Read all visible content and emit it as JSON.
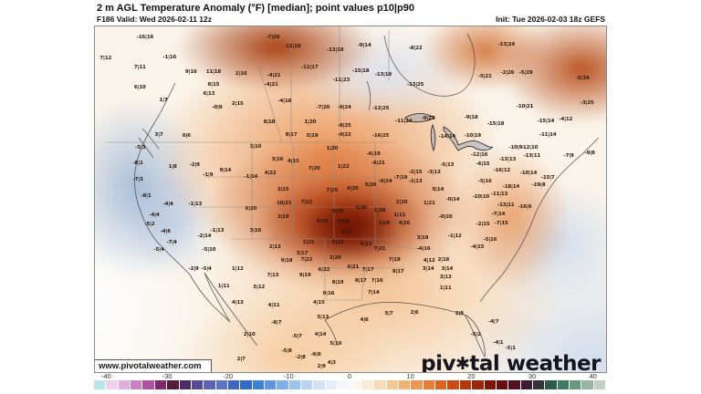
{
  "header": {
    "title": "2 m AGL Temperature Anomaly (°F) [median]; point values p10|p90",
    "valid": "F186 Valid: Wed 2026-02-11 12z",
    "init": "Init: Tue 2026-02-03 18z GEFS"
  },
  "map": {
    "watermark": "www.pivotalweather.com",
    "logo_text_1": "piv",
    "logo_gear": "✱",
    "logo_text_2": "tal weather",
    "points": [
      {
        "x": 9.8,
        "y": 3.2,
        "v": "-16|16"
      },
      {
        "x": 2.1,
        "y": 9.2,
        "v": "7|12"
      },
      {
        "x": 14.6,
        "y": 9.0,
        "v": "-1|16"
      },
      {
        "x": 8.8,
        "y": 11.9,
        "v": "7|11"
      },
      {
        "x": 18.8,
        "y": 13.2,
        "v": "9|16"
      },
      {
        "x": 23.2,
        "y": 13.2,
        "v": "11|18"
      },
      {
        "x": 8.8,
        "y": 17.7,
        "v": "6|10"
      },
      {
        "x": 23.2,
        "y": 16.9,
        "v": "8|15"
      },
      {
        "x": 22.3,
        "y": 19.5,
        "v": "6|13"
      },
      {
        "x": 13.4,
        "y": 21.4,
        "v": "1|7"
      },
      {
        "x": 23.9,
        "y": 23.5,
        "v": "-0|9"
      },
      {
        "x": 12.5,
        "y": 31.4,
        "v": "3|7"
      },
      {
        "x": 17.9,
        "y": 31.7,
        "v": "0|6"
      },
      {
        "x": 34.8,
        "y": 3.2,
        "v": "-7|29"
      },
      {
        "x": 38.6,
        "y": 5.8,
        "v": "-12|18"
      },
      {
        "x": 47.0,
        "y": 6.9,
        "v": "-13|19"
      },
      {
        "x": 52.7,
        "y": 5.5,
        "v": "-9|14"
      },
      {
        "x": 62.7,
        "y": 6.3,
        "v": "-8|22"
      },
      {
        "x": 28.6,
        "y": 13.7,
        "v": "2|16"
      },
      {
        "x": 35.0,
        "y": 14.2,
        "v": "-4|21"
      },
      {
        "x": 42.0,
        "y": 11.9,
        "v": "-12|17"
      },
      {
        "x": 52.0,
        "y": 12.9,
        "v": "-15|18"
      },
      {
        "x": 56.4,
        "y": 14.0,
        "v": "-13|18"
      },
      {
        "x": 62.7,
        "y": 16.9,
        "v": "-13|25"
      },
      {
        "x": 48.2,
        "y": 15.6,
        "v": "-11|23"
      },
      {
        "x": 34.5,
        "y": 16.9,
        "v": "-4|21"
      },
      {
        "x": 37.1,
        "y": 21.6,
        "v": "-4|18"
      },
      {
        "x": 44.6,
        "y": 23.5,
        "v": "-7|20"
      },
      {
        "x": 48.8,
        "y": 23.5,
        "v": "-9|24"
      },
      {
        "x": 55.9,
        "y": 23.7,
        "v": "-12|25"
      },
      {
        "x": 27.9,
        "y": 22.4,
        "v": "2|15"
      },
      {
        "x": 34.1,
        "y": 27.7,
        "v": "8|18"
      },
      {
        "x": 42.1,
        "y": 27.7,
        "v": "1|20"
      },
      {
        "x": 48.8,
        "y": 28.8,
        "v": "-8|25"
      },
      {
        "x": 60.4,
        "y": 27.4,
        "v": "-11|24"
      },
      {
        "x": 65.2,
        "y": 26.6,
        "v": "-9|23"
      },
      {
        "x": 38.4,
        "y": 31.4,
        "v": "8|17"
      },
      {
        "x": 42.5,
        "y": 31.7,
        "v": "5|19"
      },
      {
        "x": 48.8,
        "y": 31.4,
        "v": "-9|22"
      },
      {
        "x": 55.9,
        "y": 31.7,
        "v": "-16|25"
      },
      {
        "x": 68.9,
        "y": 31.9,
        "v": "-14|14"
      },
      {
        "x": 80.5,
        "y": 5.3,
        "v": "-13|24"
      },
      {
        "x": 76.3,
        "y": 14.5,
        "v": "-5|21"
      },
      {
        "x": 80.7,
        "y": 13.5,
        "v": "-2|26"
      },
      {
        "x": 84.3,
        "y": 13.5,
        "v": "-5|29"
      },
      {
        "x": 95.4,
        "y": 15.0,
        "v": "-5|34"
      },
      {
        "x": 84.1,
        "y": 23.2,
        "v": "-10|21"
      },
      {
        "x": 96.3,
        "y": 22.2,
        "v": "-3|25"
      },
      {
        "x": 78.4,
        "y": 28.2,
        "v": "-15|18"
      },
      {
        "x": 88.2,
        "y": 27.4,
        "v": "-15|14"
      },
      {
        "x": 92.1,
        "y": 26.9,
        "v": "-4|12"
      },
      {
        "x": 88.6,
        "y": 31.4,
        "v": "-11|14"
      },
      {
        "x": 73.9,
        "y": 31.7,
        "v": "-10|19"
      },
      {
        "x": 73.6,
        "y": 26.4,
        "v": "-9|18"
      },
      {
        "x": 8.9,
        "y": 35.1,
        "v": "-5|3"
      },
      {
        "x": 8.4,
        "y": 39.6,
        "v": "-8|1"
      },
      {
        "x": 15.2,
        "y": 40.6,
        "v": "1|8"
      },
      {
        "x": 19.5,
        "y": 40.1,
        "v": "-2|9"
      },
      {
        "x": 22.1,
        "y": 43.0,
        "v": "-1|9"
      },
      {
        "x": 25.5,
        "y": 41.7,
        "v": "9|14"
      },
      {
        "x": 8.4,
        "y": 44.3,
        "v": "-7|3"
      },
      {
        "x": 10.0,
        "y": 49.1,
        "v": "-8|1"
      },
      {
        "x": 14.3,
        "y": 51.5,
        "v": "-4|4"
      },
      {
        "x": 19.6,
        "y": 51.5,
        "v": "-1|13"
      },
      {
        "x": 11.6,
        "y": 54.6,
        "v": "-4|4"
      },
      {
        "x": 10.7,
        "y": 57.3,
        "v": "-5|2"
      },
      {
        "x": 13.8,
        "y": 59.4,
        "v": "-4|6"
      },
      {
        "x": 23.9,
        "y": 59.1,
        "v": "-1|13"
      },
      {
        "x": 21.4,
        "y": 60.7,
        "v": "-2|14"
      },
      {
        "x": 15.0,
        "y": 62.5,
        "v": "-7|4"
      },
      {
        "x": 22.3,
        "y": 64.6,
        "v": "-5|10"
      },
      {
        "x": 12.5,
        "y": 64.6,
        "v": "-5|4"
      },
      {
        "x": 31.4,
        "y": 34.8,
        "v": "3|10"
      },
      {
        "x": 35.7,
        "y": 38.5,
        "v": "3|16"
      },
      {
        "x": 38.8,
        "y": 39.1,
        "v": "4|15"
      },
      {
        "x": 46.4,
        "y": 35.4,
        "v": "1|20"
      },
      {
        "x": 54.5,
        "y": 36.9,
        "v": "-6|19"
      },
      {
        "x": 42.9,
        "y": 41.2,
        "v": "7|20"
      },
      {
        "x": 48.6,
        "y": 40.6,
        "v": "1|22"
      },
      {
        "x": 55.4,
        "y": 39.6,
        "v": "-6|21"
      },
      {
        "x": 68.9,
        "y": 40.1,
        "v": "-5|13"
      },
      {
        "x": 30.5,
        "y": 43.5,
        "v": "-1|14"
      },
      {
        "x": 34.3,
        "y": 42.5,
        "v": "4|22"
      },
      {
        "x": 62.7,
        "y": 42.2,
        "v": "-2|15"
      },
      {
        "x": 66.3,
        "y": 42.2,
        "v": "-3|13"
      },
      {
        "x": 59.8,
        "y": 43.8,
        "v": "-7|19"
      },
      {
        "x": 56.8,
        "y": 44.9,
        "v": "-0|24"
      },
      {
        "x": 53.9,
        "y": 45.9,
        "v": "3|20"
      },
      {
        "x": 62.7,
        "y": 44.9,
        "v": "-1|13"
      },
      {
        "x": 36.8,
        "y": 47.2,
        "v": "3|15"
      },
      {
        "x": 46.4,
        "y": 47.5,
        "v": "7|25"
      },
      {
        "x": 50.4,
        "y": 47.0,
        "v": "4|20"
      },
      {
        "x": 67.1,
        "y": 47.2,
        "v": "0|14"
      },
      {
        "x": 37.0,
        "y": 51.2,
        "v": "10|21"
      },
      {
        "x": 41.4,
        "y": 50.9,
        "v": "7|22"
      },
      {
        "x": 60.0,
        "y": 50.9,
        "v": "2|20"
      },
      {
        "x": 65.4,
        "y": 51.2,
        "v": "1|21"
      },
      {
        "x": 70.0,
        "y": 50.1,
        "v": "-0|14"
      },
      {
        "x": 30.5,
        "y": 52.8,
        "v": "6|20"
      },
      {
        "x": 47.5,
        "y": 53.6,
        "v": "8|30"
      },
      {
        "x": 52.1,
        "y": 52.5,
        "v": "5|30"
      },
      {
        "x": 55.7,
        "y": 53.3,
        "v": "1|28"
      },
      {
        "x": 59.6,
        "y": 54.6,
        "v": "1|11"
      },
      {
        "x": 36.8,
        "y": 55.1,
        "v": "3|19"
      },
      {
        "x": 44.5,
        "y": 56.5,
        "v": "6|30"
      },
      {
        "x": 48.6,
        "y": 56.5,
        "v": "6|28"
      },
      {
        "x": 56.6,
        "y": 57.0,
        "v": "3|26"
      },
      {
        "x": 60.5,
        "y": 57.0,
        "v": "4|26"
      },
      {
        "x": 68.6,
        "y": 55.1,
        "v": "-0|20"
      },
      {
        "x": 31.4,
        "y": 59.1,
        "v": "3|16"
      },
      {
        "x": 49.3,
        "y": 59.6,
        "v": "9|27"
      },
      {
        "x": 47.5,
        "y": 62.5,
        "v": "9|23"
      },
      {
        "x": 53.0,
        "y": 63.1,
        "v": "6|23"
      },
      {
        "x": 64.1,
        "y": 61.2,
        "v": "3|19"
      },
      {
        "x": 41.8,
        "y": 62.5,
        "v": "5|21"
      },
      {
        "x": 70.4,
        "y": 60.7,
        "v": "-1|12"
      },
      {
        "x": 35.2,
        "y": 63.9,
        "v": "2|13"
      },
      {
        "x": 55.7,
        "y": 64.4,
        "v": "7|21"
      },
      {
        "x": 64.3,
        "y": 64.4,
        "v": "-4|16"
      },
      {
        "x": 40.5,
        "y": 65.7,
        "v": "3|17"
      },
      {
        "x": 82.3,
        "y": 35.1,
        "v": "-10|9"
      },
      {
        "x": 85.0,
        "y": 35.1,
        "v": "-12|10"
      },
      {
        "x": 85.5,
        "y": 37.5,
        "v": "-13|11"
      },
      {
        "x": 92.7,
        "y": 37.5,
        "v": "-7|9"
      },
      {
        "x": 96.8,
        "y": 36.7,
        "v": "-9|8"
      },
      {
        "x": 75.2,
        "y": 37.2,
        "v": "-12|16"
      },
      {
        "x": 80.7,
        "y": 38.5,
        "v": "-13|13"
      },
      {
        "x": 75.9,
        "y": 39.8,
        "v": "-6|15"
      },
      {
        "x": 79.6,
        "y": 41.7,
        "v": "-16|12"
      },
      {
        "x": 84.8,
        "y": 42.5,
        "v": "-10|14"
      },
      {
        "x": 76.3,
        "y": 44.9,
        "v": "-5|16"
      },
      {
        "x": 88.6,
        "y": 43.8,
        "v": "-15|7"
      },
      {
        "x": 86.8,
        "y": 45.9,
        "v": "-19|8"
      },
      {
        "x": 81.4,
        "y": 46.4,
        "v": "-18|14"
      },
      {
        "x": 79.1,
        "y": 48.5,
        "v": "-11|13"
      },
      {
        "x": 75.5,
        "y": 49.3,
        "v": "-10|10"
      },
      {
        "x": 80.4,
        "y": 51.7,
        "v": "-13|11"
      },
      {
        "x": 84.1,
        "y": 52.2,
        "v": "-16|6"
      },
      {
        "x": 78.9,
        "y": 54.4,
        "v": "-7|14"
      },
      {
        "x": 79.5,
        "y": 57.0,
        "v": "-7|15"
      },
      {
        "x": 75.9,
        "y": 57.3,
        "v": "-2|15"
      },
      {
        "x": 77.3,
        "y": 61.7,
        "v": "-5|16"
      },
      {
        "x": 74.8,
        "y": 63.9,
        "v": "-4|15"
      },
      {
        "x": 19.3,
        "y": 70.2,
        "v": "-2|9"
      },
      {
        "x": 21.8,
        "y": 70.2,
        "v": "-5|4"
      },
      {
        "x": 25.2,
        "y": 75.2,
        "v": "1|11"
      },
      {
        "x": 37.5,
        "y": 67.8,
        "v": "9|18"
      },
      {
        "x": 41.4,
        "y": 67.5,
        "v": "7|22"
      },
      {
        "x": 47.0,
        "y": 67.0,
        "v": "3|20"
      },
      {
        "x": 50.5,
        "y": 69.7,
        "v": "6|21"
      },
      {
        "x": 58.6,
        "y": 67.5,
        "v": "7|18"
      },
      {
        "x": 65.4,
        "y": 67.8,
        "v": "4|12"
      },
      {
        "x": 68.2,
        "y": 67.5,
        "v": "2|16"
      },
      {
        "x": 27.9,
        "y": 70.2,
        "v": "1|12"
      },
      {
        "x": 34.8,
        "y": 72.0,
        "v": "7|13"
      },
      {
        "x": 41.1,
        "y": 72.0,
        "v": "9|19"
      },
      {
        "x": 44.8,
        "y": 70.4,
        "v": "6|22"
      },
      {
        "x": 53.4,
        "y": 70.4,
        "v": "7|17"
      },
      {
        "x": 59.3,
        "y": 71.0,
        "v": "9|17"
      },
      {
        "x": 65.2,
        "y": 70.2,
        "v": "3|14"
      },
      {
        "x": 68.9,
        "y": 70.2,
        "v": "3|14"
      },
      {
        "x": 68.6,
        "y": 72.6,
        "v": "3|13"
      },
      {
        "x": 32.1,
        "y": 75.5,
        "v": "5|12"
      },
      {
        "x": 47.5,
        "y": 74.1,
        "v": "8|19"
      },
      {
        "x": 52.0,
        "y": 73.6,
        "v": "8|17"
      },
      {
        "x": 55.2,
        "y": 73.6,
        "v": "7|16"
      },
      {
        "x": 68.6,
        "y": 75.7,
        "v": "1|11"
      },
      {
        "x": 27.9,
        "y": 79.9,
        "v": "4|13"
      },
      {
        "x": 35.0,
        "y": 80.7,
        "v": "4|11"
      },
      {
        "x": 45.7,
        "y": 77.3,
        "v": "9|16"
      },
      {
        "x": 54.5,
        "y": 77.0,
        "v": "7|14"
      },
      {
        "x": 43.8,
        "y": 79.9,
        "v": "4|15"
      },
      {
        "x": 35.5,
        "y": 85.8,
        "v": "-8|7"
      },
      {
        "x": 44.6,
        "y": 84.2,
        "v": "5|13"
      },
      {
        "x": 52.7,
        "y": 85.0,
        "v": "4|6"
      },
      {
        "x": 57.5,
        "y": 83.1,
        "v": "5|7"
      },
      {
        "x": 62.5,
        "y": 82.8,
        "v": "2|6"
      },
      {
        "x": 71.3,
        "y": 83.1,
        "v": "2|8"
      },
      {
        "x": 30.2,
        "y": 89.2,
        "v": "2|10"
      },
      {
        "x": 39.5,
        "y": 89.7,
        "v": "-5|7"
      },
      {
        "x": 44.1,
        "y": 89.2,
        "v": "4|14"
      },
      {
        "x": 47.1,
        "y": 91.8,
        "v": "5|10"
      },
      {
        "x": 37.5,
        "y": 93.9,
        "v": "-5|8"
      },
      {
        "x": 40.2,
        "y": 95.8,
        "v": "-2|8"
      },
      {
        "x": 43.2,
        "y": 95.0,
        "v": "-9|8"
      },
      {
        "x": 46.3,
        "y": 97.4,
        "v": "4|3"
      },
      {
        "x": 28.6,
        "y": 96.3,
        "v": "2|7"
      },
      {
        "x": 44.3,
        "y": 98.4,
        "v": "2|9"
      },
      {
        "x": 78.0,
        "y": 85.5,
        "v": "-4|7"
      },
      {
        "x": 74.5,
        "y": 89.2,
        "v": "-5|2"
      },
      {
        "x": 78.9,
        "y": 91.6,
        "v": "-4|1"
      },
      {
        "x": 81.3,
        "y": 93.1,
        "v": "-5|1"
      }
    ]
  },
  "colorbar": {
    "min": -42,
    "max": 42,
    "ticks": [
      {
        "label": "-40",
        "value": -40
      },
      {
        "label": "-30",
        "value": -30
      },
      {
        "label": "-20",
        "value": -20
      },
      {
        "label": "-10",
        "value": -10
      },
      {
        "label": "0",
        "value": 0
      },
      {
        "label": "10",
        "value": 10
      },
      {
        "label": "20",
        "value": 20
      },
      {
        "label": "30",
        "value": 30
      },
      {
        "label": "40",
        "value": 40
      }
    ],
    "segments": [
      "#b9e4ee",
      "#eed2ec",
      "#e3aede",
      "#cf7fc6",
      "#b052a4",
      "#7e2a6a",
      "#551b3a",
      "#4f2a66",
      "#564a94",
      "#5c63b4",
      "#5a74c6",
      "#3f66c0",
      "#2f6cca",
      "#3e80d6",
      "#5e97e0",
      "#7fade8",
      "#9cc2ee",
      "#b9d4f2",
      "#d2e3f6",
      "#e6eef9",
      "#f4f7fb",
      "#fdf6ec",
      "#fbe9d4",
      "#f9dab8",
      "#f6c896",
      "#f2b172",
      "#ed9852",
      "#e67e38",
      "#dc6222",
      "#cd4a12",
      "#b63709",
      "#9c2607",
      "#811505",
      "#670e10",
      "#521021",
      "#3f1a33",
      "#31353b",
      "#2d5c4e",
      "#3f7a62",
      "#68997f",
      "#97b5a2",
      "#c2cfc4"
    ]
  },
  "colors": {
    "warm_core": "#7a1803",
    "warm": "#e07c34",
    "cool": "#9bb4d7",
    "logo_text": "#15151f",
    "title_text": "#111111"
  }
}
